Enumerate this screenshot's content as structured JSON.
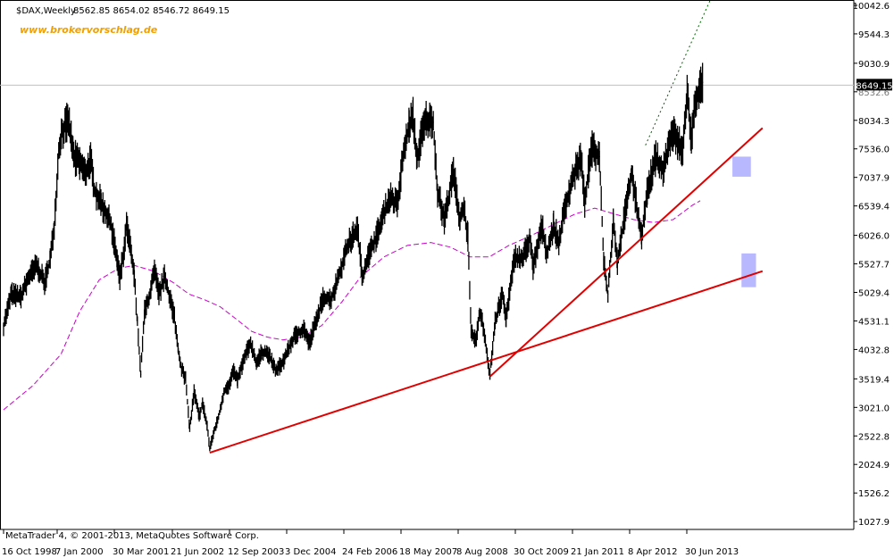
{
  "header": {
    "symbol": "$DAX,Weekly",
    "ohlc": "8562.85 8654.02 8546.72 8649.15",
    "brand": "www.brokervorschlag.de"
  },
  "footer": {
    "copyright": "MetaTrader 4, © 2001-2013, MetaQuotes Software Corp."
  },
  "colors": {
    "price": "#000000",
    "ma": "#cc00cc",
    "trendline": "#e00000",
    "projection": "#006600",
    "zone": "#b8b8ff",
    "brand": "#f0a000",
    "grid_frame": "#000000",
    "hline": "#c0c0c0"
  },
  "chart_data": {
    "type": "line",
    "title": "$DAX,Weekly",
    "x_ticks": [
      "16 Oct 1998",
      "7 Jan 2000",
      "30 Mar 2001",
      "21 Jun 2002",
      "12 Sep 2003",
      "3 Dec 2004",
      "24 Feb 2006",
      "18 May 2007",
      "8 Aug 2008",
      "30 Oct 2009",
      "21 Jan 2011",
      "8 Apr 2012",
      "30 Jun 2013"
    ],
    "y_ticks": [
      10042.6,
      9544.3,
      9030.9,
      8532.6,
      8034.3,
      7536.0,
      7037.9,
      6539.4,
      6026.0,
      5527.7,
      5029.4,
      4531.1,
      4032.8,
      3519.4,
      3021.0,
      2522.8,
      2024.9,
      1526.2,
      1027.9
    ],
    "ylim": [
      890,
      10120
    ],
    "last_price": "8649.15",
    "last_price_value": 8649.15,
    "series": [
      {
        "kind": "price",
        "points": [
          [
            "1998-10-16",
            4450
          ],
          [
            "1998-12-15",
            5000
          ],
          [
            "1999-03-01",
            4950
          ],
          [
            "1999-05-01",
            5300
          ],
          [
            "1999-07-01",
            5500
          ],
          [
            "1999-09-01",
            5200
          ],
          [
            "1999-10-15",
            5600
          ],
          [
            "1999-11-15",
            6200
          ],
          [
            "1999-12-20",
            7500
          ],
          [
            "2000-01-10",
            7800
          ],
          [
            "2000-03-05",
            8050
          ],
          [
            "2000-04-15",
            7400
          ],
          [
            "2000-06-01",
            7300
          ],
          [
            "2000-07-15",
            7100
          ],
          [
            "2000-08-25",
            7350
          ],
          [
            "2000-09-25",
            6800
          ],
          [
            "2000-11-15",
            6600
          ],
          [
            "2000-12-25",
            6400
          ],
          [
            "2001-02-01",
            6200
          ],
          [
            "2001-02-25",
            5900
          ],
          [
            "2001-03-20",
            5600
          ],
          [
            "2001-04-10",
            5300
          ],
          [
            "2001-05-15",
            5800
          ],
          [
            "2001-06-01",
            6200
          ],
          [
            "2001-06-25",
            5900
          ],
          [
            "2001-08-01",
            5300
          ],
          [
            "2001-08-25",
            4500
          ],
          [
            "2001-09-20",
            3600
          ],
          [
            "2001-10-20",
            4700
          ],
          [
            "2001-12-01",
            5000
          ],
          [
            "2002-01-05",
            5400
          ],
          [
            "2002-02-10",
            5000
          ],
          [
            "2002-03-25",
            5300
          ],
          [
            "2002-05-10",
            4900
          ],
          [
            "2002-06-10",
            4600
          ],
          [
            "2002-07-10",
            4000
          ],
          [
            "2002-08-05",
            3700
          ],
          [
            "2002-09-05",
            3500
          ],
          [
            "2002-10-07",
            2650
          ],
          [
            "2002-11-10",
            3300
          ],
          [
            "2002-12-20",
            2850
          ],
          [
            "2003-01-15",
            3100
          ],
          [
            "2003-02-20",
            2700
          ],
          [
            "2003-03-12",
            2300
          ],
          [
            "2003-04-15",
            2600
          ],
          [
            "2003-05-20",
            2850
          ],
          [
            "2003-07-01",
            3300
          ],
          [
            "2003-08-10",
            3400
          ],
          [
            "2003-09-15",
            3650
          ],
          [
            "2003-10-15",
            3500
          ],
          [
            "2003-12-10",
            3900
          ],
          [
            "2004-01-25",
            4150
          ],
          [
            "2004-03-10",
            3800
          ],
          [
            "2004-04-25",
            4000
          ],
          [
            "2004-06-10",
            3950
          ],
          [
            "2004-08-10",
            3650
          ],
          [
            "2004-10-10",
            3850
          ],
          [
            "2004-12-30",
            4250
          ],
          [
            "2005-03-15",
            4400
          ],
          [
            "2005-04-25",
            4150
          ],
          [
            "2005-06-30",
            4600
          ],
          [
            "2005-08-15",
            4950
          ],
          [
            "2005-10-15",
            4900
          ],
          [
            "2005-12-30",
            5450
          ],
          [
            "2006-02-20",
            5850
          ],
          [
            "2006-05-08",
            6150
          ],
          [
            "2006-06-14",
            5300
          ],
          [
            "2006-07-20",
            5600
          ],
          [
            "2006-09-15",
            5900
          ],
          [
            "2006-11-15",
            6300
          ],
          [
            "2007-01-15",
            6700
          ],
          [
            "2007-03-14",
            6550
          ],
          [
            "2007-04-25",
            7350
          ],
          [
            "2007-06-15",
            7950
          ],
          [
            "2007-07-15",
            8100
          ],
          [
            "2007-08-16",
            7350
          ],
          [
            "2007-09-20",
            7800
          ],
          [
            "2007-10-25",
            8050
          ],
          [
            "2007-12-20",
            8000
          ],
          [
            "2008-01-22",
            6800
          ],
          [
            "2008-03-15",
            6300
          ],
          [
            "2008-05-25",
            7150
          ],
          [
            "2008-07-15",
            6300
          ],
          [
            "2008-08-15",
            6500
          ],
          [
            "2008-09-15",
            6000
          ],
          [
            "2008-10-10",
            4300
          ],
          [
            "2008-11-20",
            4200
          ],
          [
            "2008-12-15",
            4700
          ],
          [
            "2009-01-15",
            4400
          ],
          [
            "2009-03-06",
            3600
          ],
          [
            "2009-04-15",
            4500
          ],
          [
            "2009-06-10",
            5000
          ],
          [
            "2009-07-10",
            4600
          ],
          [
            "2009-09-15",
            5650
          ],
          [
            "2009-11-15",
            5600
          ],
          [
            "2010-01-10",
            6000
          ],
          [
            "2010-02-05",
            5450
          ],
          [
            "2010-04-15",
            6200
          ],
          [
            "2010-05-25",
            5700
          ],
          [
            "2010-07-15",
            6200
          ],
          [
            "2010-08-25",
            5900
          ],
          [
            "2010-10-15",
            6550
          ],
          [
            "2010-12-15",
            7050
          ],
          [
            "2011-02-15",
            7400
          ],
          [
            "2011-03-15",
            6600
          ],
          [
            "2011-05-05",
            7550
          ],
          [
            "2011-07-08",
            7400
          ],
          [
            "2011-08-10",
            5600
          ],
          [
            "2011-09-12",
            5000
          ],
          [
            "2011-10-25",
            6300
          ],
          [
            "2011-11-25",
            5550
          ],
          [
            "2012-01-15",
            6300
          ],
          [
            "2012-03-15",
            7100
          ],
          [
            "2012-04-25",
            6500
          ],
          [
            "2012-06-01",
            6000
          ],
          [
            "2012-07-15",
            6800
          ],
          [
            "2012-09-20",
            7400
          ],
          [
            "2012-11-15",
            7150
          ],
          [
            "2013-01-25",
            7850
          ],
          [
            "2013-04-18",
            7500
          ],
          [
            "2013-05-22",
            8550
          ],
          [
            "2013-06-24",
            7700
          ],
          [
            "2013-07-25",
            8400
          ],
          [
            "2013-09-20",
            8700
          ]
        ]
      },
      {
        "kind": "moving-average",
        "points": [
          [
            "1998-10-16",
            2980
          ],
          [
            "1999-06-01",
            3400
          ],
          [
            "2000-01-07",
            3950
          ],
          [
            "2000-06-01",
            4700
          ],
          [
            "2000-11-01",
            5250
          ],
          [
            "2001-04-01",
            5450
          ],
          [
            "2001-08-01",
            5500
          ],
          [
            "2002-01-01",
            5400
          ],
          [
            "2002-06-01",
            5200
          ],
          [
            "2002-10-01",
            5000
          ],
          [
            "2003-02-01",
            4900
          ],
          [
            "2003-06-01",
            4780
          ],
          [
            "2003-10-01",
            4570
          ],
          [
            "2004-02-01",
            4350
          ],
          [
            "2004-06-01",
            4250
          ],
          [
            "2004-10-01",
            4200
          ],
          [
            "2005-03-01",
            4250
          ],
          [
            "2005-08-01",
            4450
          ],
          [
            "2006-01-01",
            4850
          ],
          [
            "2006-06-01",
            5300
          ],
          [
            "2006-12-01",
            5650
          ],
          [
            "2007-06-01",
            5850
          ],
          [
            "2007-12-01",
            5900
          ],
          [
            "2008-05-01",
            5820
          ],
          [
            "2008-10-01",
            5650
          ],
          [
            "2009-03-01",
            5650
          ],
          [
            "2009-08-01",
            5850
          ],
          [
            "2010-01-01",
            6000
          ],
          [
            "2010-07-01",
            6200
          ],
          [
            "2011-01-01",
            6400
          ],
          [
            "2011-06-01",
            6500
          ],
          [
            "2011-11-01",
            6400
          ],
          [
            "2012-04-01",
            6300
          ],
          [
            "2012-09-01",
            6250
          ],
          [
            "2013-02-01",
            6300
          ],
          [
            "2013-07-01",
            6550
          ],
          [
            "2013-09-01",
            6630
          ]
        ]
      }
    ],
    "trendlines": [
      {
        "kind": "support",
        "from": [
          "2003-03-12",
          2230
        ],
        "to": [
          "2014-12-31",
          5400
        ]
      },
      {
        "kind": "support",
        "from": [
          "2009-03-06",
          3560
        ],
        "to": [
          "2014-12-31",
          7900
        ]
      },
      {
        "kind": "projection-dotted",
        "from": [
          "2012-07-01",
          7600
        ],
        "to": [
          "2013-12-01",
          10200
        ]
      }
    ],
    "zones": [
      {
        "x": [
          "2014-05-10",
          "2014-10-01"
        ],
        "y": [
          7050,
          7400
        ]
      },
      {
        "x": [
          "2014-07-20",
          "2014-11-10"
        ],
        "y": [
          5120,
          5710
        ]
      }
    ]
  }
}
